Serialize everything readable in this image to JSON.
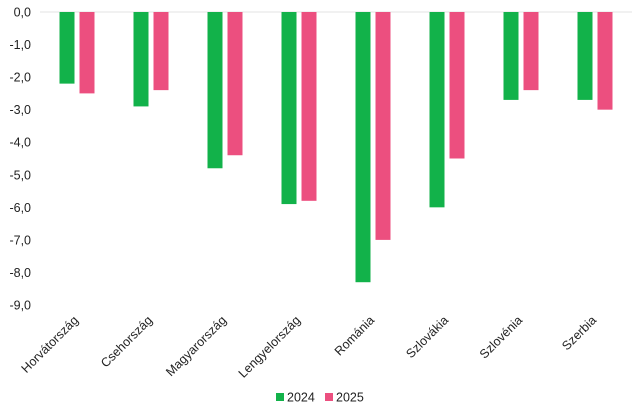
{
  "chart_data": {
    "type": "bar",
    "categories": [
      "Horvátország",
      "Csehország",
      "Magyarország",
      "Lengyelország",
      "Románia",
      "Szlovákia",
      "Szlovénia",
      "Szerbia"
    ],
    "series": [
      {
        "name": "2024",
        "color": "#12b24a",
        "values": [
          -2.2,
          -2.9,
          -4.8,
          -5.9,
          -8.3,
          -6.0,
          -2.7,
          -2.7
        ]
      },
      {
        "name": "2025",
        "color": "#ec4f7f",
        "values": [
          -2.5,
          -2.4,
          -4.4,
          -5.8,
          -7.0,
          -4.5,
          -2.4,
          -3.0
        ]
      }
    ],
    "yticks": [
      "0,0",
      "-1,0",
      "-2,0",
      "-3,0",
      "-4,0",
      "-5,0",
      "-6,0",
      "-7,0",
      "-8,0",
      "-9,0"
    ],
    "ylim": [
      -9,
      0
    ],
    "legend_position": "bottom"
  }
}
